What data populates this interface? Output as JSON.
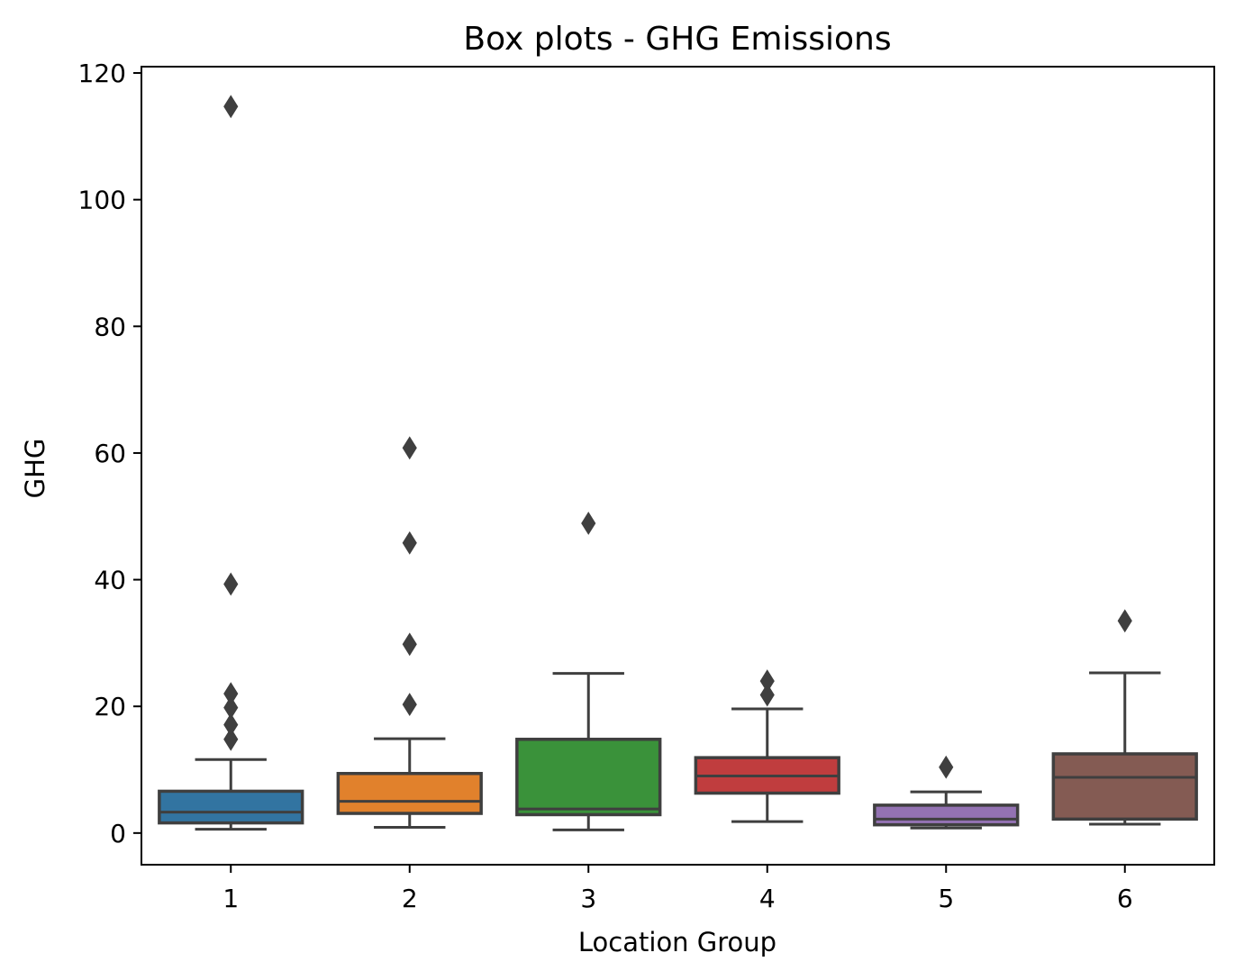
{
  "chart_data": {
    "type": "box",
    "title": "Box plots - GHG Emissions",
    "xlabel": "Location Group",
    "ylabel": "GHG",
    "ylim": [
      -5,
      121
    ],
    "yticks": [
      0,
      20,
      40,
      60,
      80,
      100,
      120
    ],
    "grid": false,
    "categories": [
      "1",
      "2",
      "3",
      "4",
      "5",
      "6"
    ],
    "boxes": [
      {
        "category": "1",
        "color": "#3274a1",
        "whisker_low": 0.6,
        "q1": 1.6,
        "median": 3.3,
        "q3": 6.6,
        "whisker_high": 11.6,
        "outliers": [
          14.8,
          17.1,
          19.8,
          22.0,
          39.3,
          114.7
        ]
      },
      {
        "category": "2",
        "color": "#e1812c",
        "whisker_low": 0.9,
        "q1": 3.1,
        "median": 5.0,
        "q3": 9.4,
        "whisker_high": 14.9,
        "outliers": [
          20.3,
          29.8,
          45.8,
          60.8
        ]
      },
      {
        "category": "3",
        "color": "#3a923a",
        "whisker_low": 0.5,
        "q1": 2.9,
        "median": 3.8,
        "q3": 14.8,
        "whisker_high": 25.2,
        "outliers": [
          48.9
        ]
      },
      {
        "category": "4",
        "color": "#c03d3e",
        "whisker_low": 1.8,
        "q1": 6.3,
        "median": 9.0,
        "q3": 11.9,
        "whisker_high": 19.6,
        "outliers": [
          21.8,
          24.0
        ]
      },
      {
        "category": "5",
        "color": "#9372b2",
        "whisker_low": 0.8,
        "q1": 1.3,
        "median": 2.2,
        "q3": 4.4,
        "whisker_high": 6.5,
        "outliers": [
          10.4
        ]
      },
      {
        "category": "6",
        "color": "#845b53",
        "whisker_low": 1.4,
        "q1": 2.2,
        "median": 8.8,
        "q3": 12.5,
        "whisker_high": 25.3,
        "outliers": [
          33.5
        ]
      }
    ]
  }
}
